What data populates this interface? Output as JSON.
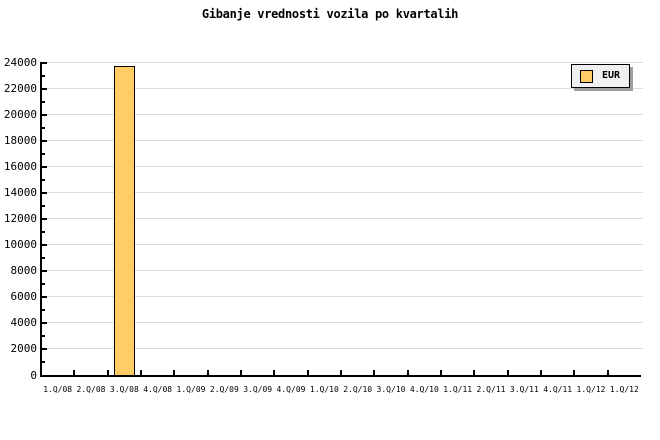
{
  "title": "Gibanje vrednosti vozila po kvartalih",
  "legend": {
    "label": "EUR",
    "position": "top-right"
  },
  "colors": {
    "bar_fill": "#FFCC66",
    "bar_border": "#000000",
    "grid": "#DCDCDC",
    "axis": "#000000",
    "legend_bg": "#F0F0F0",
    "legend_shadow": "#9E9E9E",
    "background": "#FFFFFF",
    "text": "#000000"
  },
  "chart_data": {
    "type": "bar",
    "title": "Gibanje vrednosti vozila po kvartalih",
    "categories": [
      "1.Q/08",
      "2.Q/08",
      "3.Q/08",
      "4.Q/08",
      "1.Q/09",
      "2.Q/09",
      "3.Q/09",
      "4.Q/09",
      "1.Q/10",
      "2.Q/10",
      "3.Q/10",
      "4.Q/10",
      "1.Q/11",
      "2.Q/11",
      "3.Q/11",
      "4.Q/11",
      "1.Q/12",
      "1.Q/12"
    ],
    "series": [
      {
        "name": "EUR",
        "color": "#FFCC66",
        "values": [
          0,
          0,
          23750,
          0,
          0,
          0,
          0,
          0,
          0,
          0,
          0,
          0,
          0,
          0,
          0,
          0,
          0,
          0
        ]
      }
    ],
    "xlabel": "",
    "ylabel": "",
    "ylim": [
      0,
      24000
    ],
    "yticks": [
      0,
      2000,
      4000,
      6000,
      8000,
      10000,
      12000,
      14000,
      16000,
      18000,
      20000,
      22000,
      24000
    ],
    "ytick_minor_step": 1000,
    "grid": "horizontal-major",
    "legend_position": "top-right"
  }
}
